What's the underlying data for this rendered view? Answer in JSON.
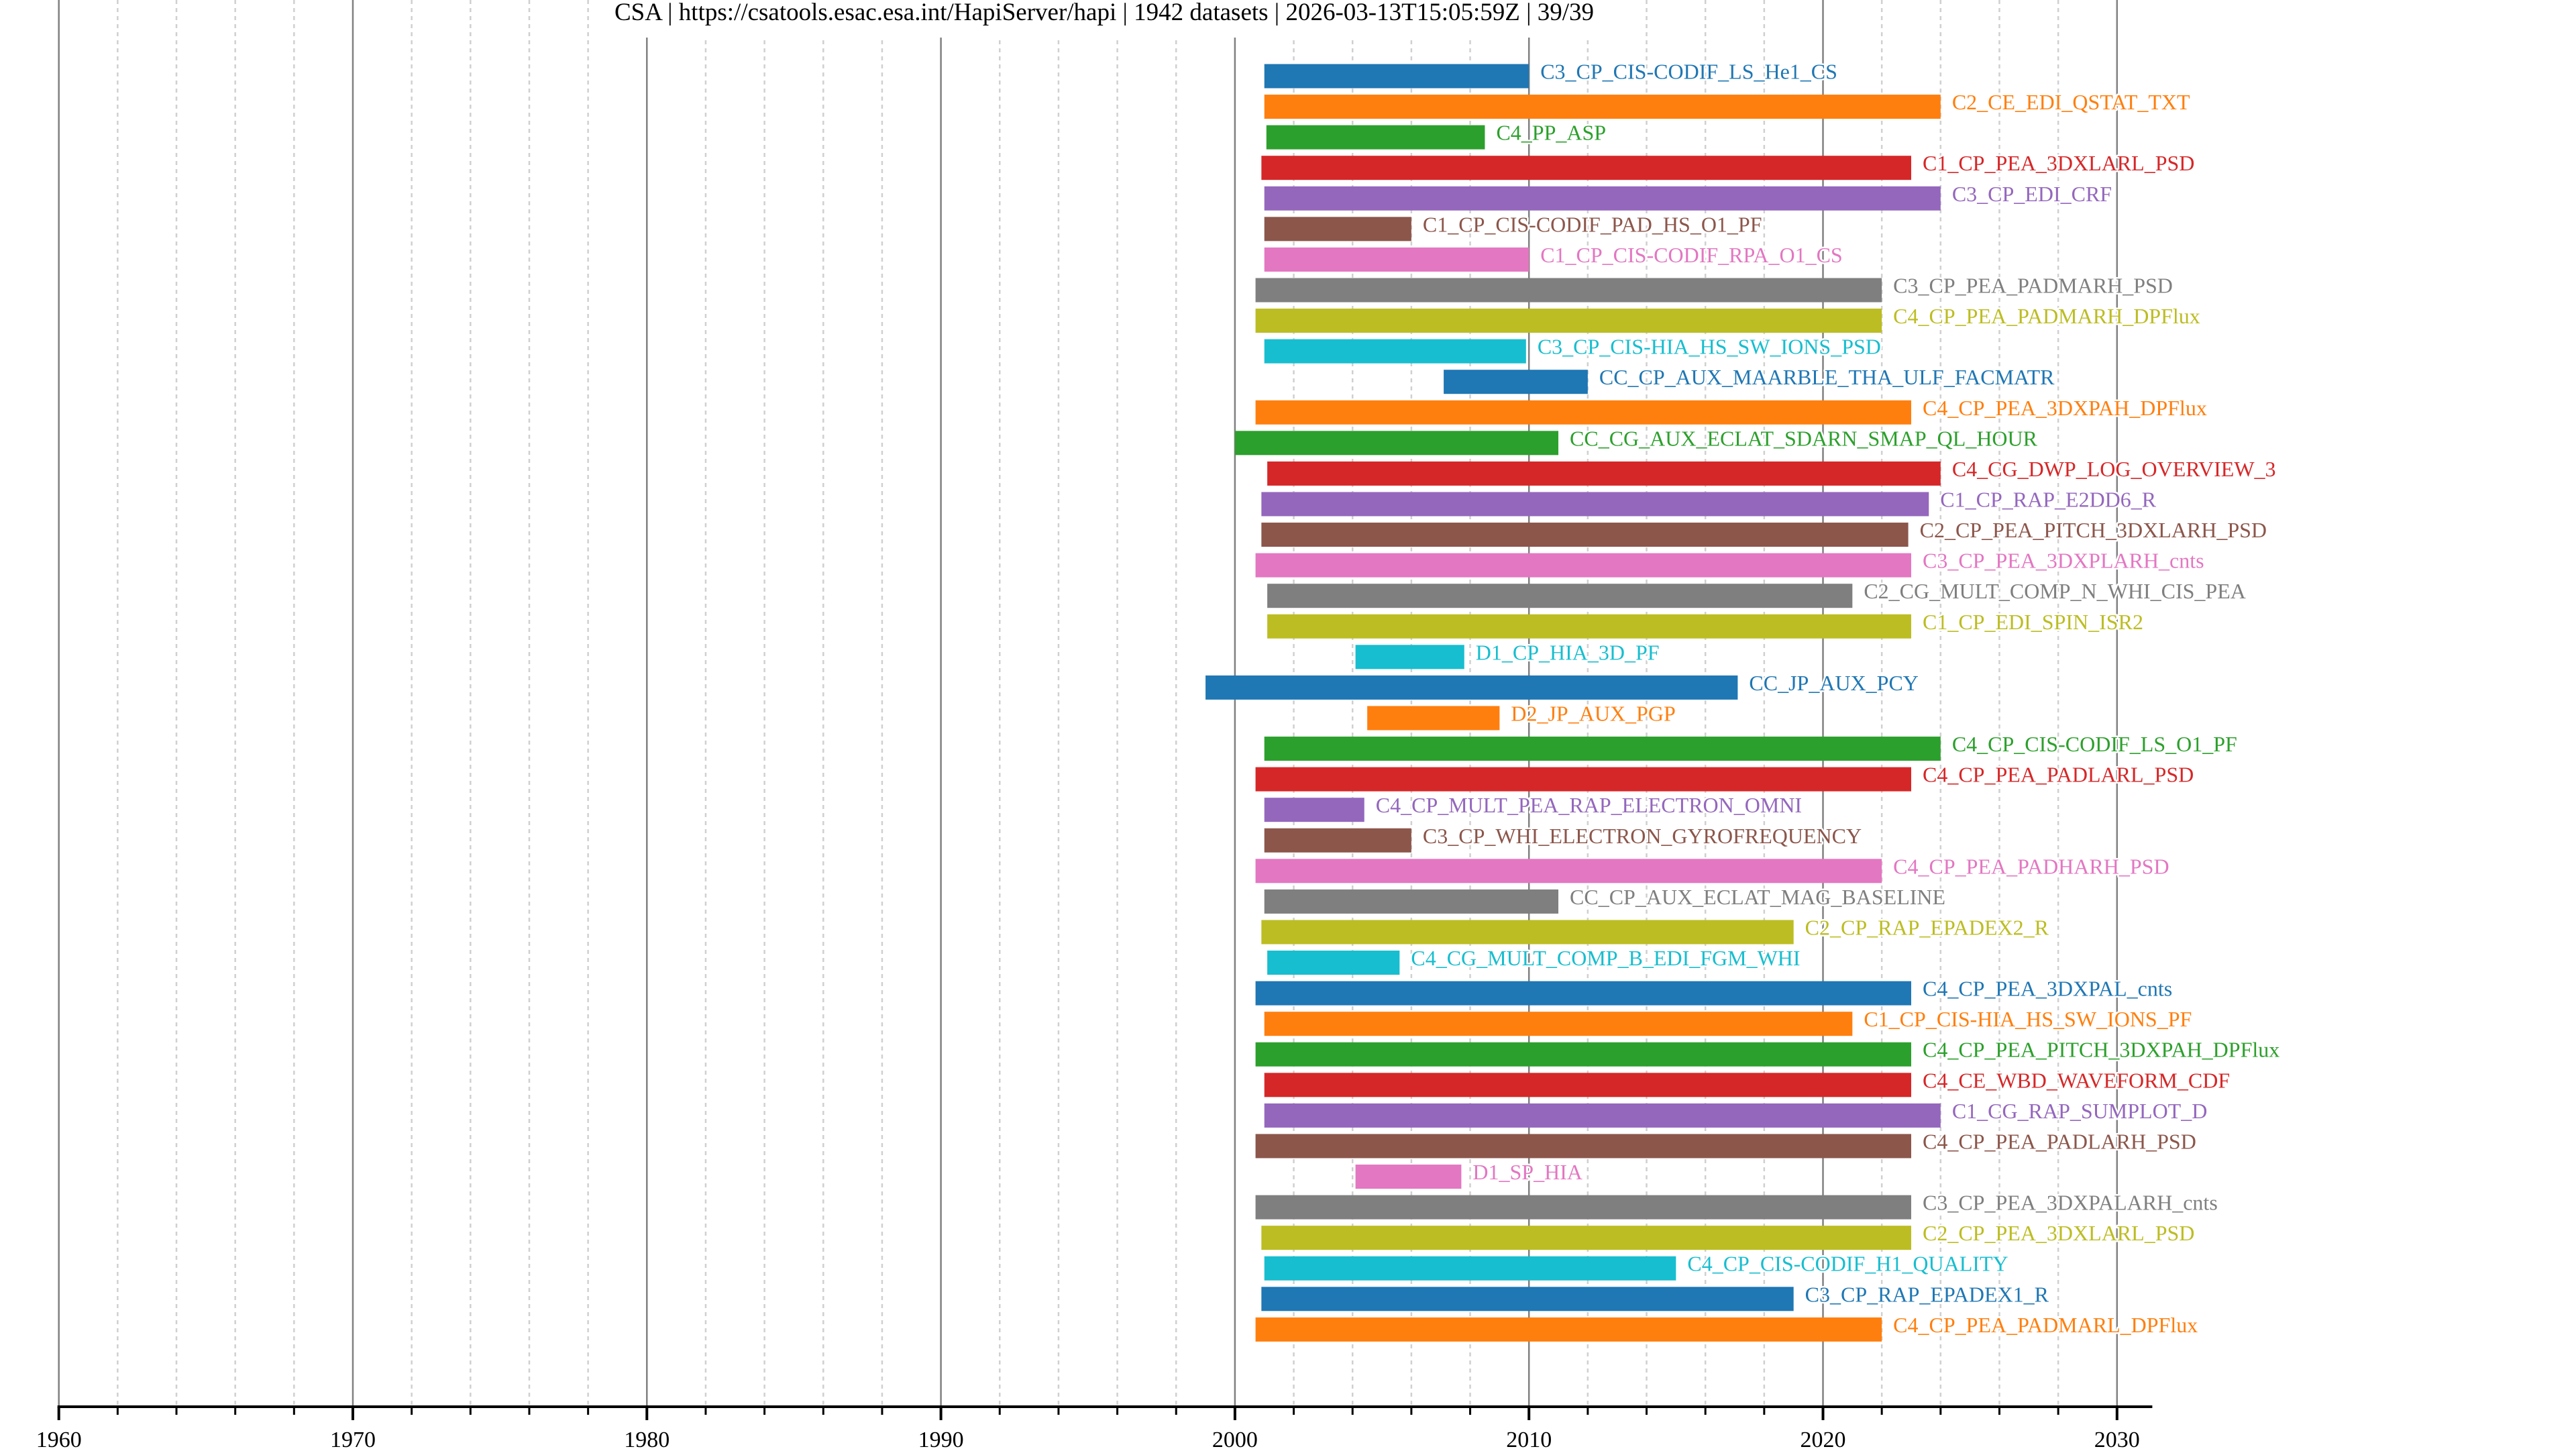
{
  "chart_data": {
    "type": "bar",
    "orientation": "horizontal-timeline",
    "title": "CSA | https://csatools.esac.esa.int/HapiServer/hapi | 1942 datasets | 2026-03-13T15:05:59Z | 39/39",
    "xlabel": "",
    "ylabel": "",
    "xlim": [
      1960,
      2031.2
    ],
    "x_ticks": [
      1960,
      1970,
      1980,
      1990,
      2000,
      2010,
      2020,
      2030
    ],
    "x_tick_labels": [
      "1960",
      "1970",
      "1980",
      "1990",
      "2000",
      "2010",
      "2020",
      "2030"
    ],
    "x_minor_step": 2,
    "grid": true,
    "legend": "none (labels placed at bar ends)",
    "series": [
      {
        "name": "C3_CP_CIS-CODIF_LS_He1_CS",
        "start": 2001.0,
        "end": 2010.0,
        "color": "#1f77b4"
      },
      {
        "name": "C2_CE_EDI_QSTAT_TXT",
        "start": 2001.0,
        "end": 2024.0,
        "color": "#ff7f0e"
      },
      {
        "name": "C4_PP_ASP",
        "start": 2001.07,
        "end": 2008.5,
        "color": "#2ca02c"
      },
      {
        "name": "C1_CP_PEA_3DXLARL_PSD",
        "start": 2000.9,
        "end": 2023.0,
        "color": "#d62728"
      },
      {
        "name": "C3_CP_EDI_CRF",
        "start": 2001.0,
        "end": 2024.0,
        "color": "#9467bd"
      },
      {
        "name": "C1_CP_CIS-CODIF_PAD_HS_O1_PF",
        "start": 2001.0,
        "end": 2006.0,
        "color": "#8c564b"
      },
      {
        "name": "C1_CP_CIS-CODIF_RPA_O1_CS",
        "start": 2001.0,
        "end": 2010.0,
        "color": "#e377c2"
      },
      {
        "name": "C3_CP_PEA_PADMARH_PSD",
        "start": 2000.7,
        "end": 2022.0,
        "color": "#7f7f7f"
      },
      {
        "name": "C4_CP_PEA_PADMARH_DPFlux",
        "start": 2000.7,
        "end": 2022.0,
        "color": "#bcbd22"
      },
      {
        "name": "C3_CP_CIS-HIA_HS_SW_IONS_PSD",
        "start": 2001.0,
        "end": 2009.9,
        "color": "#17becf"
      },
      {
        "name": "CC_CP_AUX_MAARBLE_THA_ULF_FACMATR",
        "start": 2007.1,
        "end": 2012.0,
        "color": "#1f77b4"
      },
      {
        "name": "C4_CP_PEA_3DXPAH_DPFlux",
        "start": 2000.7,
        "end": 2023.0,
        "color": "#ff7f0e"
      },
      {
        "name": "CC_CG_AUX_ECLAT_SDARN_SMAP_QL_HOUR",
        "start": 2000.0,
        "end": 2011.0,
        "color": "#2ca02c"
      },
      {
        "name": "C4_CG_DWP_LOG_OVERVIEW_3",
        "start": 2001.1,
        "end": 2024.0,
        "color": "#d62728"
      },
      {
        "name": "C1_CP_RAP_E2DD6_R",
        "start": 2000.9,
        "end": 2023.6,
        "color": "#9467bd"
      },
      {
        "name": "C2_CP_PEA_PITCH_3DXLARH_PSD",
        "start": 2000.9,
        "end": 2022.9,
        "color": "#8c564b"
      },
      {
        "name": "C3_CP_PEA_3DXPLARH_cnts",
        "start": 2000.7,
        "end": 2023.0,
        "color": "#e377c2"
      },
      {
        "name": "C2_CG_MULT_COMP_N_WHI_CIS_PEA",
        "start": 2001.1,
        "end": 2021.0,
        "color": "#7f7f7f"
      },
      {
        "name": "C1_CP_EDI_SPIN_ISR2",
        "start": 2001.1,
        "end": 2023.0,
        "color": "#bcbd22"
      },
      {
        "name": "D1_CP_HIA_3D_PF",
        "start": 2004.1,
        "end": 2007.8,
        "color": "#17becf"
      },
      {
        "name": "CC_JP_AUX_PCY",
        "start": 1999.0,
        "end": 2017.1,
        "color": "#1f77b4"
      },
      {
        "name": "D2_JP_AUX_PGP",
        "start": 2004.5,
        "end": 2009.0,
        "color": "#ff7f0e"
      },
      {
        "name": "C4_CP_CIS-CODIF_LS_O1_PF",
        "start": 2001.0,
        "end": 2024.0,
        "color": "#2ca02c"
      },
      {
        "name": "C4_CP_PEA_PADLARL_PSD",
        "start": 2000.7,
        "end": 2023.0,
        "color": "#d62728"
      },
      {
        "name": "C4_CP_MULT_PEA_RAP_ELECTRON_OMNI",
        "start": 2001.0,
        "end": 2004.4,
        "color": "#9467bd"
      },
      {
        "name": "C3_CP_WHI_ELECTRON_GYROFREQUENCY",
        "start": 2001.0,
        "end": 2006.0,
        "color": "#8c564b"
      },
      {
        "name": "C4_CP_PEA_PADHARH_PSD",
        "start": 2000.7,
        "end": 2022.0,
        "color": "#e377c2"
      },
      {
        "name": "CC_CP_AUX_ECLAT_MAG_BASELINE",
        "start": 2001.0,
        "end": 2011.0,
        "color": "#7f7f7f"
      },
      {
        "name": "C2_CP_RAP_EPADEX2_R",
        "start": 2000.9,
        "end": 2019.0,
        "color": "#bcbd22"
      },
      {
        "name": "C4_CG_MULT_COMP_B_EDI_FGM_WHI",
        "start": 2001.1,
        "end": 2005.6,
        "color": "#17becf"
      },
      {
        "name": "C4_CP_PEA_3DXPAL_cnts",
        "start": 2000.7,
        "end": 2023.0,
        "color": "#1f77b4"
      },
      {
        "name": "C1_CP_CIS-HIA_HS_SW_IONS_PF",
        "start": 2001.0,
        "end": 2021.0,
        "color": "#ff7f0e"
      },
      {
        "name": "C4_CP_PEA_PITCH_3DXPAH_DPFlux",
        "start": 2000.7,
        "end": 2023.0,
        "color": "#2ca02c"
      },
      {
        "name": "C4_CE_WBD_WAVEFORM_CDF",
        "start": 2001.0,
        "end": 2023.0,
        "color": "#d62728"
      },
      {
        "name": "C1_CG_RAP_SUMPLOT_D",
        "start": 2001.0,
        "end": 2024.0,
        "color": "#9467bd"
      },
      {
        "name": "C4_CP_PEA_PADLARH_PSD",
        "start": 2000.7,
        "end": 2023.0,
        "color": "#8c564b"
      },
      {
        "name": "D1_SP_HIA",
        "start": 2004.1,
        "end": 2007.7,
        "color": "#e377c2"
      },
      {
        "name": "C3_CP_PEA_3DXPALARH_cnts",
        "start": 2000.7,
        "end": 2023.0,
        "color": "#7f7f7f"
      },
      {
        "name": "C2_CP_PEA_3DXLARL_PSD",
        "start": 2000.9,
        "end": 2023.0,
        "color": "#bcbd22"
      },
      {
        "name": "C4_CP_CIS-CODIF_H1_QUALITY",
        "start": 2001.0,
        "end": 2015.0,
        "color": "#17becf"
      },
      {
        "name": "C3_CP_RAP_EPADEX1_R",
        "start": 2000.9,
        "end": 2019.0,
        "color": "#1f77b4"
      },
      {
        "name": "C4_CP_PEA_PADMARL_DPFlux",
        "start": 2000.7,
        "end": 2022.0,
        "color": "#ff7f0e"
      }
    ]
  }
}
